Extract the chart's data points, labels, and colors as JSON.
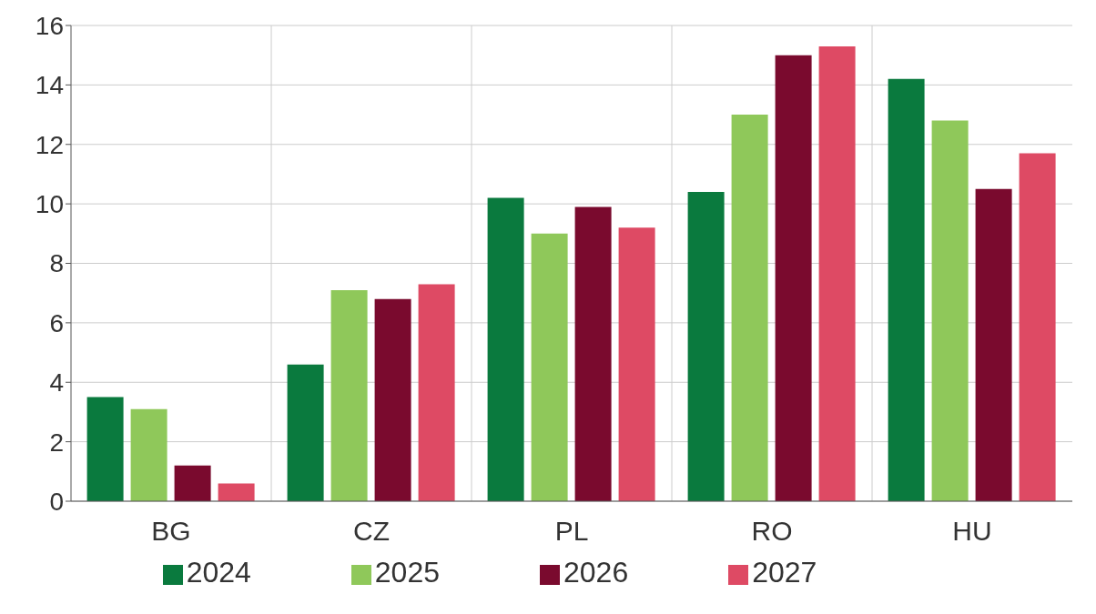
{
  "chart_data": {
    "type": "bar",
    "categories": [
      "BG",
      "CZ",
      "PL",
      "RO",
      "HU"
    ],
    "series": [
      {
        "name": "2024",
        "color": "#0a7a3e",
        "values": [
          3.5,
          4.6,
          10.2,
          10.4,
          14.2
        ]
      },
      {
        "name": "2025",
        "color": "#8fc85a",
        "values": [
          3.1,
          7.1,
          9.0,
          13.0,
          12.8
        ]
      },
      {
        "name": "2026",
        "color": "#7a0a2e",
        "values": [
          1.2,
          6.8,
          9.9,
          15.0,
          10.5
        ]
      },
      {
        "name": "2027",
        "color": "#de4a64",
        "values": [
          0.6,
          7.3,
          9.2,
          15.3,
          11.7
        ]
      }
    ],
    "ylim": [
      0,
      16
    ],
    "yticks": [
      0,
      2,
      4,
      6,
      8,
      10,
      12,
      14,
      16
    ],
    "grid": true,
    "legend": "bottom"
  }
}
